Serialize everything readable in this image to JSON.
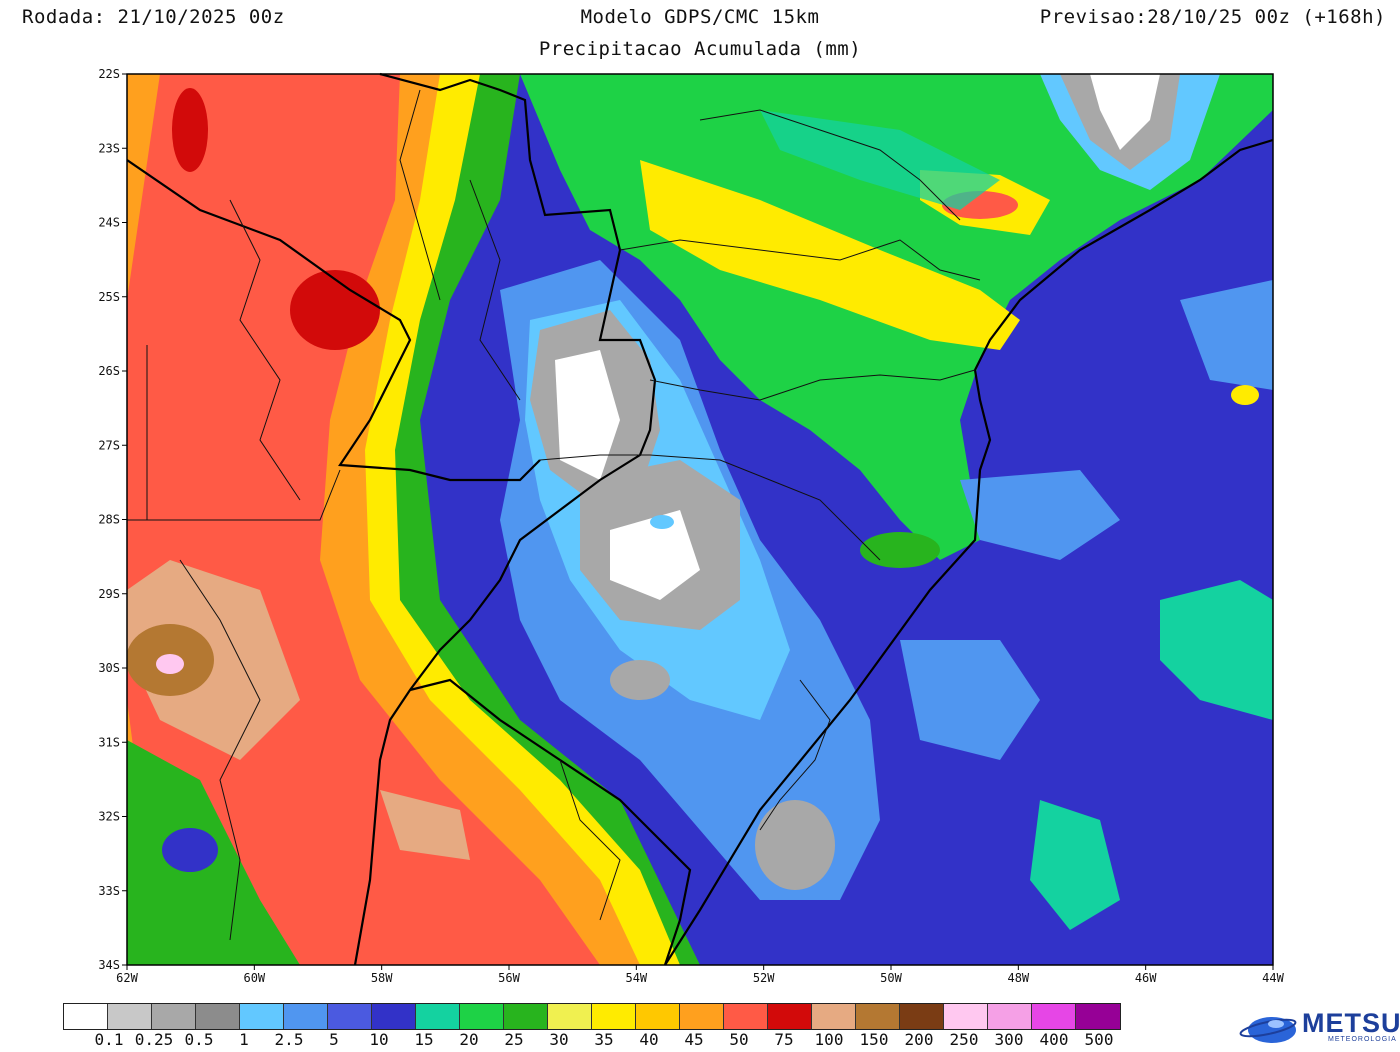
{
  "header": {
    "run": "Rodada: 21/10/2025 00z",
    "model": "Modelo GDPS/CMC 15km",
    "forecast": "Previsao:28/10/25 00z (+168h)",
    "subtitle": "Precipitacao Acumulada (mm)"
  },
  "axes": {
    "lat_labels": [
      "22S",
      "23S",
      "24S",
      "25S",
      "26S",
      "27S",
      "28S",
      "29S",
      "30S",
      "31S",
      "32S",
      "33S",
      "34S"
    ],
    "lon_labels": [
      "62W",
      "60W",
      "58W",
      "56W",
      "54W",
      "52W",
      "50W",
      "48W",
      "46W",
      "44W"
    ]
  },
  "legend": {
    "colors": [
      "#ffffff",
      "#c8c8c8",
      "#a8a8a8",
      "#8c8c8c",
      "#62c8ff",
      "#5096f0",
      "#4b5ae0",
      "#3232c8",
      "#14d2a0",
      "#1ed246",
      "#28b41e",
      "#f0f050",
      "#ffeb00",
      "#ffc800",
      "#ffa01e",
      "#ff5a46",
      "#d20a0a",
      "#e6aa82",
      "#b47832",
      "#7a3c14",
      "#ffc8f0",
      "#f5a0e6",
      "#e646e6",
      "#960096"
    ],
    "labels": [
      "0.1",
      "0.25",
      "0.5",
      "1",
      "2.5",
      "5",
      "10",
      "15",
      "20",
      "25",
      "30",
      "35",
      "40",
      "45",
      "50",
      "75",
      "100",
      "150",
      "200",
      "250",
      "300",
      "400",
      "500"
    ]
  },
  "logo": {
    "name": "METSUL",
    "tagline": "METEOROLOGIA"
  }
}
